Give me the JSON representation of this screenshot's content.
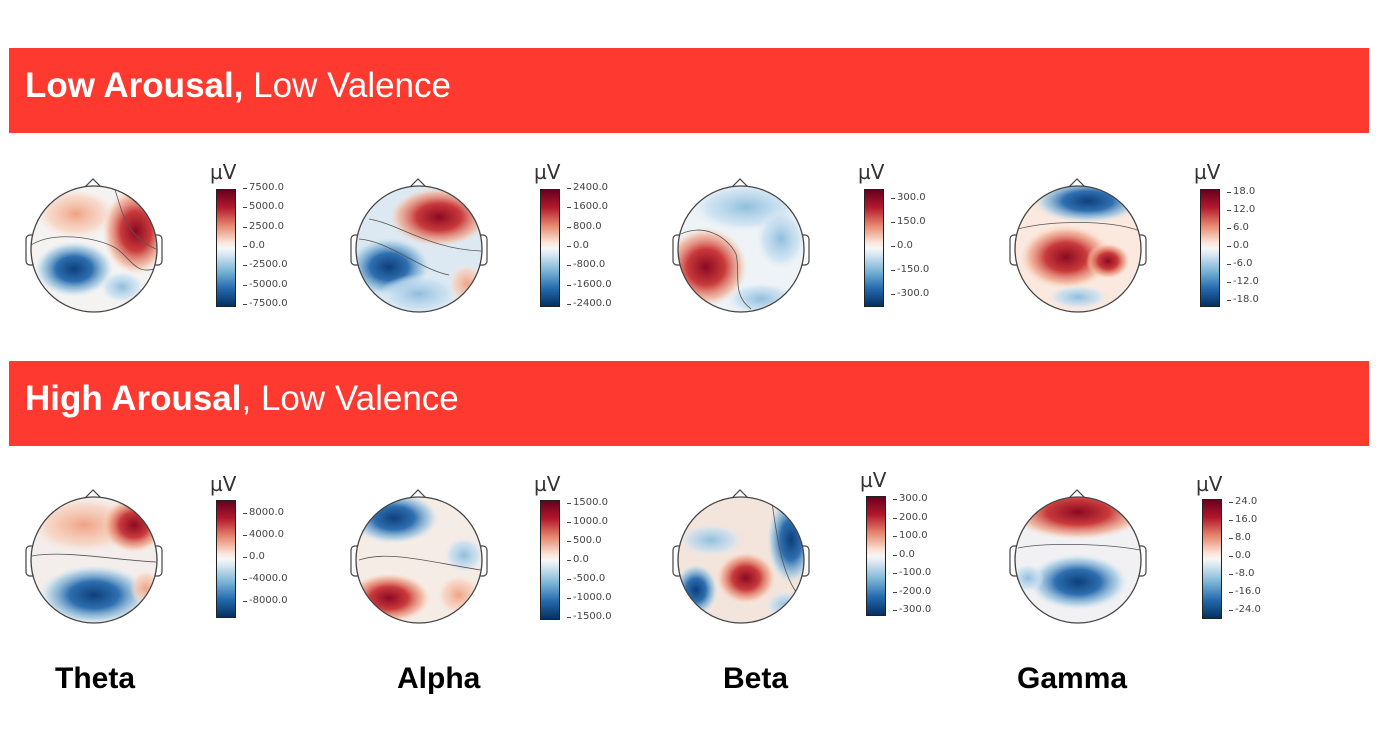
{
  "rows": [
    {
      "title_bold": "Low Arousal,",
      "title_rest": " Low Valence",
      "maps": [
        {
          "band": "theta",
          "ticks": [
            "7500.0",
            "5000.0",
            "2500.0",
            "0.0",
            "-2500.0",
            "-5000.0",
            "-7500.0"
          ]
        },
        {
          "band": "alpha",
          "ticks": [
            "2400.0",
            "1600.0",
            "800.0",
            "0.0",
            "-800.0",
            "-1600.0",
            "-2400.0"
          ]
        },
        {
          "band": "beta",
          "ticks": [
            "300.0",
            "150.0",
            "0.0",
            "-150.0",
            "-300.0"
          ]
        },
        {
          "band": "gamma",
          "ticks": [
            "18.0",
            "12.0",
            "6.0",
            "0.0",
            "-6.0",
            "-12.0",
            "-18.0"
          ]
        }
      ]
    },
    {
      "title_bold": "High Arousal",
      "title_rest": ", Low Valence",
      "maps": [
        {
          "band": "theta",
          "ticks": [
            "8000.0",
            "4000.0",
            "0.0",
            "-4000.0",
            "-8000.0"
          ]
        },
        {
          "band": "alpha",
          "ticks": [
            "1500.0",
            "1000.0",
            "500.0",
            "0.0",
            "-500.0",
            "-1000.0",
            "-1500.0"
          ]
        },
        {
          "band": "beta",
          "ticks": [
            "300.0",
            "200.0",
            "100.0",
            "0.0",
            "-100.0",
            "-200.0",
            "-300.0"
          ]
        },
        {
          "band": "gamma",
          "ticks": [
            "24.0",
            "16.0",
            "8.0",
            "0.0",
            "-8.0",
            "-16.0",
            "-24.0"
          ]
        }
      ]
    }
  ],
  "unit_label": "µV",
  "band_labels": [
    "Theta",
    "Alpha",
    "Beta",
    "Gamma"
  ],
  "colormap": {
    "high": "#67001f",
    "mid": "#f7f7f7",
    "low": "#053061"
  },
  "banner_color": "#fe3a30"
}
